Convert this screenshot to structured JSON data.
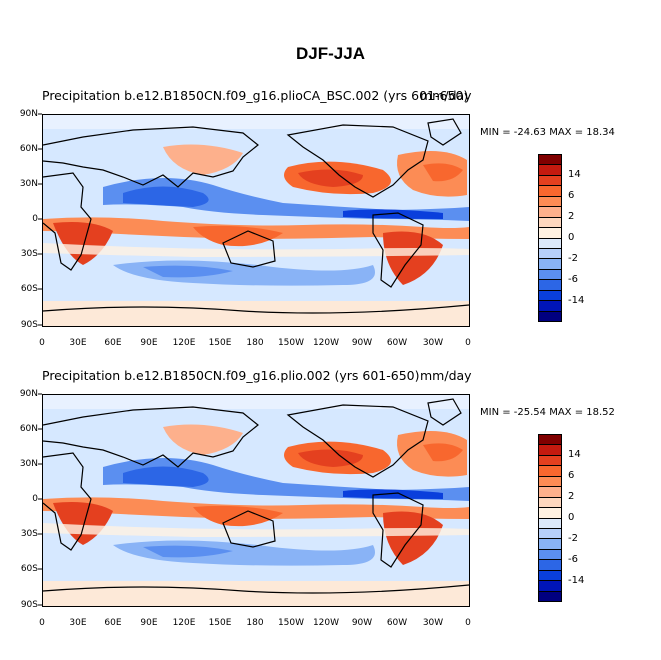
{
  "title": "DJF-JJA",
  "panels": [
    {
      "left_title": "Precipitation b.e12.B1850CN.f09_g16.plioCA_BSC.002 (yrs 601-650)",
      "right_title": "mm/day",
      "min_max": "MIN = -24.63  MAX =  18.34"
    },
    {
      "left_title": "Precipitation b.e12.B1850CN.f09_g16.plio.002 (yrs 601-650)",
      "right_title": "mm/day",
      "min_max": "MIN = -25.54  MAX =  18.52"
    }
  ],
  "lat_labels": [
    "90N",
    "60N",
    "30N",
    "0",
    "30S",
    "60S",
    "90S"
  ],
  "lon_labels": [
    "0",
    "30E",
    "60E",
    "90E",
    "120E",
    "150E",
    "180",
    "150W",
    "120W",
    "90W",
    "60W",
    "30W",
    "0"
  ],
  "legend": {
    "labels": [
      "14",
      "6",
      "2",
      "0",
      "-2",
      "-6",
      "-14"
    ],
    "colors": [
      "#800000",
      "#c41a0f",
      "#e4401f",
      "#f8672e",
      "#fc8c55",
      "#fdb08c",
      "#fed7be",
      "#fff1e2",
      "#dce9fb",
      "#b6cffa",
      "#89b3f6",
      "#5b8ff0",
      "#2c66e6",
      "#0a3fdc",
      "#0015b8",
      "#000080"
    ]
  },
  "palette": {
    "land_outline": "#000000",
    "background_field": "#d6e8ff"
  }
}
